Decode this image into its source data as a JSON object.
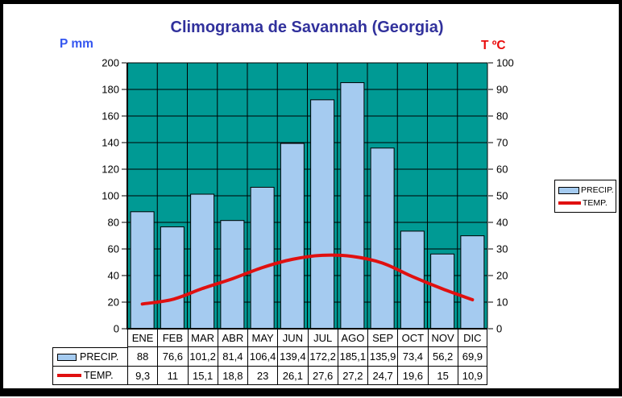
{
  "title": "Climograma de Savannah (Georgia)",
  "axes": {
    "left_label": "P mm",
    "right_label": "T ºC"
  },
  "legend": {
    "items": [
      {
        "label": "PRECIP.",
        "type": "bar"
      },
      {
        "label": "TEMP.",
        "type": "line"
      }
    ]
  },
  "table": {
    "precip_label": "PRECIP.",
    "temp_label": "TEMP."
  },
  "chart_data": {
    "type": "combo",
    "categories": [
      "ENE",
      "FEB",
      "MAR",
      "ABR",
      "MAY",
      "JUN",
      "JUL",
      "AGO",
      "SEP",
      "OCT",
      "NOV",
      "DIC"
    ],
    "series": [
      {
        "name": "PRECIP.",
        "type": "bar",
        "axis": "left",
        "color": "#a5cbf0",
        "values": [
          88,
          76.6,
          101.2,
          81.4,
          106.4,
          139.4,
          172.2,
          185.1,
          135.9,
          73.4,
          56.2,
          69.9
        ]
      },
      {
        "name": "TEMP.",
        "type": "line",
        "axis": "right",
        "color": "#e01010",
        "values": [
          9.3,
          11,
          15.1,
          18.8,
          23,
          26.1,
          27.6,
          27.2,
          24.7,
          19.6,
          15,
          10.9
        ]
      }
    ],
    "left_axis": {
      "min": 0,
      "max": 200,
      "tick_step": 20
    },
    "right_axis": {
      "min": 0,
      "max": 100,
      "tick_step": 10
    },
    "plot_bg": "#009a94",
    "grid": true,
    "legend_position": "right"
  }
}
